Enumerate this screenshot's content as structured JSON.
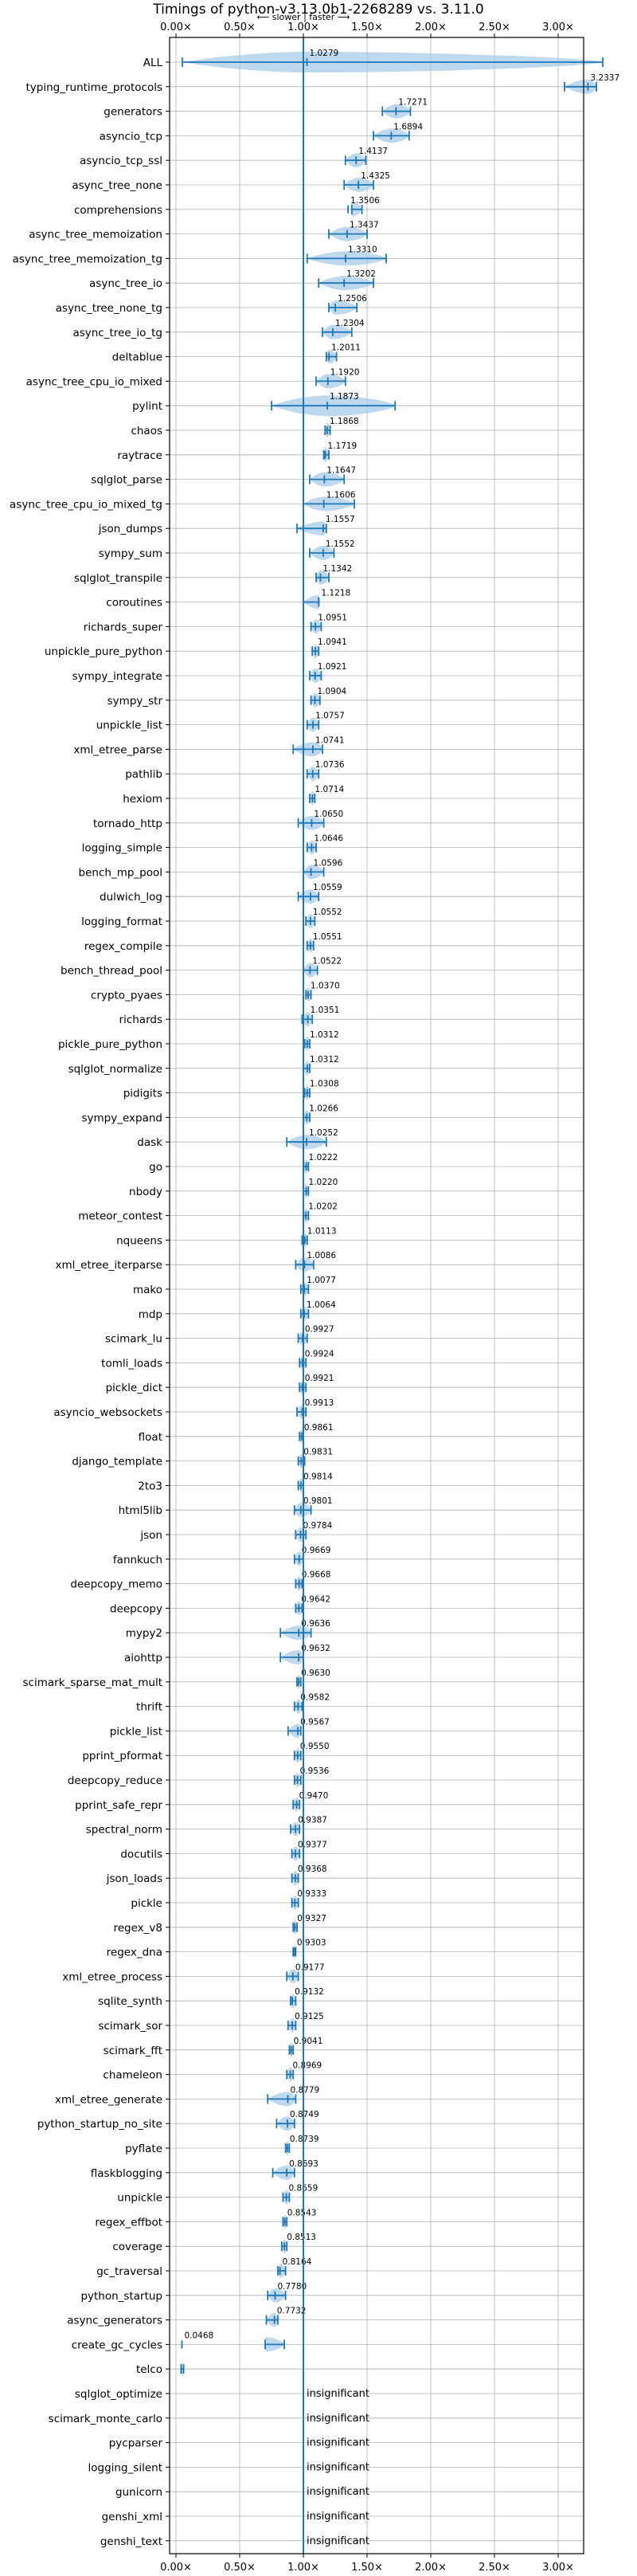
{
  "chart_data": {
    "type": "violin",
    "title": "Timings of python-v3.13.0b1-2268289 vs. 3.11.0",
    "xlim": [
      -0.05,
      3.2
    ],
    "x_ticks": [
      0,
      0.5,
      1.0,
      1.5,
      2.0,
      2.5,
      3.0
    ],
    "x_tick_labels": [
      "0.00×",
      "0.50×",
      "1.00×",
      "1.50×",
      "2.00×",
      "2.50×",
      "3.00×"
    ],
    "reference_line": 1.0,
    "direction_label": "⟵ slower  |  faster ⟶",
    "insignificant_label": "insignificant",
    "grid": true,
    "colors": {
      "violin": "#a8cbe8",
      "line": "#1f77b4",
      "highlight": "#d62728"
    },
    "benchmarks": [
      {
        "name": "ALL",
        "value": 1.0279,
        "low": 0.05,
        "high": 3.35,
        "w": 0.15
      },
      {
        "name": "typing_runtime_protocols",
        "value": 3.2337,
        "low": 3.05,
        "high": 3.3
      },
      {
        "name": "generators",
        "value": 1.7271,
        "low": 1.62,
        "high": 1.84
      },
      {
        "name": "asyncio_tcp",
        "value": 1.6894,
        "low": 1.55,
        "high": 1.83
      },
      {
        "name": "asyncio_tcp_ssl",
        "value": 1.4137,
        "low": 1.33,
        "high": 1.49
      },
      {
        "name": "async_tree_none",
        "value": 1.4325,
        "low": 1.32,
        "high": 1.55
      },
      {
        "name": "comprehensions",
        "value": 1.3506,
        "low": 1.38,
        "high": 1.46
      },
      {
        "name": "async_tree_memoization",
        "value": 1.3437,
        "low": 1.2,
        "high": 1.5
      },
      {
        "name": "async_tree_memoization_tg",
        "value": 1.331,
        "low": 1.03,
        "high": 1.65
      },
      {
        "name": "async_tree_io",
        "value": 1.3202,
        "low": 1.12,
        "high": 1.55
      },
      {
        "name": "async_tree_none_tg",
        "value": 1.2506,
        "low": 1.2,
        "high": 1.42
      },
      {
        "name": "async_tree_io_tg",
        "value": 1.2304,
        "low": 1.15,
        "high": 1.38
      },
      {
        "name": "deltablue",
        "value": 1.2011,
        "low": 1.18,
        "high": 1.26
      },
      {
        "name": "async_tree_cpu_io_mixed",
        "value": 1.192,
        "low": 1.1,
        "high": 1.33
      },
      {
        "name": "pylint",
        "value": 1.1873,
        "low": 0.75,
        "high": 1.72,
        "w": 0.1
      },
      {
        "name": "chaos",
        "value": 1.1868,
        "low": 1.17,
        "high": 1.21
      },
      {
        "name": "raytrace",
        "value": 1.1719,
        "low": 1.16,
        "high": 1.2
      },
      {
        "name": "sqlglot_parse",
        "value": 1.1647,
        "low": 1.05,
        "high": 1.32
      },
      {
        "name": "async_tree_cpu_io_mixed_tg",
        "value": 1.1606,
        "low": 1.0,
        "high": 1.4
      },
      {
        "name": "json_dumps",
        "value": 1.1557,
        "low": 0.95,
        "high": 1.18
      },
      {
        "name": "sympy_sum",
        "value": 1.1552,
        "low": 1.05,
        "high": 1.24
      },
      {
        "name": "sqlglot_transpile",
        "value": 1.1342,
        "low": 1.1,
        "high": 1.2
      },
      {
        "name": "coroutines",
        "value": 1.1218,
        "low": 1.0,
        "high": 1.12
      },
      {
        "name": "richards_super",
        "value": 1.0951,
        "low": 1.06,
        "high": 1.14
      },
      {
        "name": "unpickle_pure_python",
        "value": 1.0941,
        "low": 1.07,
        "high": 1.12
      },
      {
        "name": "sympy_integrate",
        "value": 1.0921,
        "low": 1.05,
        "high": 1.14
      },
      {
        "name": "sympy_str",
        "value": 1.0904,
        "low": 1.06,
        "high": 1.13
      },
      {
        "name": "unpickle_list",
        "value": 1.0757,
        "low": 1.03,
        "high": 1.12
      },
      {
        "name": "xml_etree_parse",
        "value": 1.0741,
        "low": 0.92,
        "high": 1.15
      },
      {
        "name": "pathlib",
        "value": 1.0736,
        "low": 1.03,
        "high": 1.12
      },
      {
        "name": "hexiom",
        "value": 1.0714,
        "low": 1.05,
        "high": 1.09
      },
      {
        "name": "tornado_http",
        "value": 1.065,
        "low": 0.96,
        "high": 1.16
      },
      {
        "name": "logging_simple",
        "value": 1.0646,
        "low": 1.03,
        "high": 1.1
      },
      {
        "name": "bench_mp_pool",
        "value": 1.0596,
        "low": 1.0,
        "high": 1.16
      },
      {
        "name": "dulwich_log",
        "value": 1.0559,
        "low": 0.96,
        "high": 1.12
      },
      {
        "name": "logging_format",
        "value": 1.0552,
        "low": 1.02,
        "high": 1.09
      },
      {
        "name": "regex_compile",
        "value": 1.0551,
        "low": 1.03,
        "high": 1.08
      },
      {
        "name": "bench_thread_pool",
        "value": 1.0522,
        "low": 1.0,
        "high": 1.11
      },
      {
        "name": "crypto_pyaes",
        "value": 1.037,
        "low": 1.02,
        "high": 1.06
      },
      {
        "name": "richards",
        "value": 1.0351,
        "low": 0.99,
        "high": 1.07
      },
      {
        "name": "pickle_pure_python",
        "value": 1.0312,
        "low": 1.01,
        "high": 1.05
      },
      {
        "name": "sqlglot_normalize",
        "value": 1.0312,
        "low": 1.0,
        "high": 1.05
      },
      {
        "name": "pidigits",
        "value": 1.0308,
        "low": 1.01,
        "high": 1.05
      },
      {
        "name": "sympy_expand",
        "value": 1.0266,
        "low": 1.0,
        "high": 1.05
      },
      {
        "name": "dask",
        "value": 1.0252,
        "low": 0.87,
        "high": 1.18
      },
      {
        "name": "go",
        "value": 1.0222,
        "low": 1.0,
        "high": 1.04
      },
      {
        "name": "nbody",
        "value": 1.022,
        "low": 1.0,
        "high": 1.04
      },
      {
        "name": "meteor_contest",
        "value": 1.0202,
        "low": 1.0,
        "high": 1.04
      },
      {
        "name": "nqueens",
        "value": 1.0113,
        "low": 0.99,
        "high": 1.03
      },
      {
        "name": "xml_etree_iterparse",
        "value": 1.0086,
        "low": 0.94,
        "high": 1.08
      },
      {
        "name": "mako",
        "value": 1.0077,
        "low": 0.98,
        "high": 1.04
      },
      {
        "name": "mdp",
        "value": 1.0064,
        "low": 0.98,
        "high": 1.04
      },
      {
        "name": "scimark_lu",
        "value": 0.9927,
        "low": 0.96,
        "high": 1.03
      },
      {
        "name": "tomli_loads",
        "value": 0.9924,
        "low": 0.97,
        "high": 1.02
      },
      {
        "name": "pickle_dict",
        "value": 0.9921,
        "low": 0.97,
        "high": 1.02
      },
      {
        "name": "asyncio_websockets",
        "value": 0.9913,
        "low": 0.95,
        "high": 1.02
      },
      {
        "name": "float",
        "value": 0.9861,
        "low": 0.97,
        "high": 1.0
      },
      {
        "name": "django_template",
        "value": 0.9831,
        "low": 0.96,
        "high": 1.01
      },
      {
        "name": "2to3",
        "value": 0.9814,
        "low": 0.96,
        "high": 1.0
      },
      {
        "name": "html5lib",
        "value": 0.9801,
        "low": 0.93,
        "high": 1.06
      },
      {
        "name": "json",
        "value": 0.9784,
        "low": 0.94,
        "high": 1.02
      },
      {
        "name": "fannkuch",
        "value": 0.9669,
        "low": 0.93,
        "high": 1.0
      },
      {
        "name": "deepcopy_memo",
        "value": 0.9668,
        "low": 0.94,
        "high": 0.99
      },
      {
        "name": "deepcopy",
        "value": 0.9642,
        "low": 0.94,
        "high": 0.99
      },
      {
        "name": "mypy2",
        "value": 0.9636,
        "low": 0.82,
        "high": 1.06
      },
      {
        "name": "aiohttp",
        "value": 0.9632,
        "low": 0.82,
        "high": 1.0
      },
      {
        "name": "scimark_sparse_mat_mult",
        "value": 0.963,
        "low": 0.95,
        "high": 0.98
      },
      {
        "name": "thrift",
        "value": 0.9582,
        "low": 0.93,
        "high": 0.99
      },
      {
        "name": "pickle_list",
        "value": 0.9567,
        "low": 0.88,
        "high": 0.98
      },
      {
        "name": "pprint_pformat",
        "value": 0.955,
        "low": 0.93,
        "high": 0.98
      },
      {
        "name": "deepcopy_reduce",
        "value": 0.9536,
        "low": 0.93,
        "high": 0.98
      },
      {
        "name": "pprint_safe_repr",
        "value": 0.947,
        "low": 0.92,
        "high": 0.97
      },
      {
        "name": "spectral_norm",
        "value": 0.9387,
        "low": 0.9,
        "high": 0.97
      },
      {
        "name": "docutils",
        "value": 0.9377,
        "low": 0.91,
        "high": 0.97
      },
      {
        "name": "json_loads",
        "value": 0.9368,
        "low": 0.91,
        "high": 0.96
      },
      {
        "name": "pickle",
        "value": 0.9333,
        "low": 0.91,
        "high": 0.96
      },
      {
        "name": "regex_v8",
        "value": 0.9327,
        "low": 0.92,
        "high": 0.95
      },
      {
        "name": "regex_dna",
        "value": 0.9303,
        "low": 0.92,
        "high": 0.94
      },
      {
        "name": "xml_etree_process",
        "value": 0.9177,
        "low": 0.87,
        "high": 0.96
      },
      {
        "name": "sqlite_synth",
        "value": 0.9132,
        "low": 0.9,
        "high": 0.94
      },
      {
        "name": "scimark_sor",
        "value": 0.9125,
        "low": 0.88,
        "high": 0.94
      },
      {
        "name": "scimark_fft",
        "value": 0.9041,
        "low": 0.89,
        "high": 0.92
      },
      {
        "name": "chameleon",
        "value": 0.8969,
        "low": 0.87,
        "high": 0.92
      },
      {
        "name": "xml_etree_generate",
        "value": 0.8779,
        "low": 0.72,
        "high": 0.94
      },
      {
        "name": "python_startup_no_site",
        "value": 0.8749,
        "low": 0.79,
        "high": 0.93
      },
      {
        "name": "pyflate",
        "value": 0.8739,
        "low": 0.86,
        "high": 0.89
      },
      {
        "name": "flaskblogging",
        "value": 0.8693,
        "low": 0.76,
        "high": 0.93
      },
      {
        "name": "unpickle",
        "value": 0.8659,
        "low": 0.84,
        "high": 0.89
      },
      {
        "name": "regex_effbot",
        "value": 0.8543,
        "low": 0.84,
        "high": 0.87
      },
      {
        "name": "coverage",
        "value": 0.8513,
        "low": 0.83,
        "high": 0.87
      },
      {
        "name": "gc_traversal",
        "value": 0.8164,
        "low": 0.8,
        "high": 0.86
      },
      {
        "name": "python_startup",
        "value": 0.778,
        "low": 0.72,
        "high": 0.86
      },
      {
        "name": "async_generators",
        "value": 0.7732,
        "low": 0.71,
        "high": 0.8
      },
      {
        "name": "create_gc_cycles",
        "value": 0.0468,
        "low": 0.7,
        "high": 0.85
      },
      {
        "name": "telco",
        "value": null,
        "low": 0.04,
        "high": 0.06
      },
      {
        "name": "sqlglot_optimize",
        "value": null,
        "insignificant": true
      },
      {
        "name": "scimark_monte_carlo",
        "value": null,
        "insignificant": true
      },
      {
        "name": "pycparser",
        "value": null,
        "insignificant": true
      },
      {
        "name": "logging_silent",
        "value": null,
        "insignificant": true
      },
      {
        "name": "gunicorn",
        "value": null,
        "insignificant": true
      },
      {
        "name": "genshi_xml",
        "value": null,
        "insignificant": true
      },
      {
        "name": "genshi_text",
        "value": null,
        "insignificant": true
      }
    ]
  }
}
